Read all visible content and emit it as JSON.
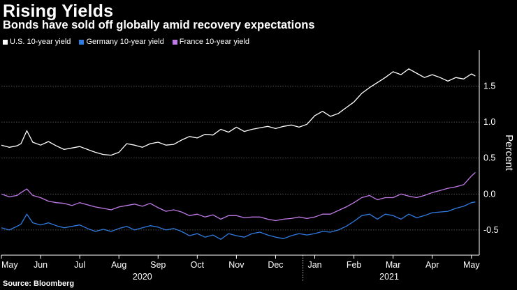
{
  "title": "Rising Yields",
  "subtitle": "Bonds have sold off globally amid recovery expectations",
  "source": "Source: Bloomberg",
  "colors": {
    "background": "#000000",
    "us": "#ffffff",
    "germany": "#2f7be0",
    "france": "#c07ae8",
    "grid": "#666666"
  },
  "chart_data": {
    "type": "line",
    "title": "Rising Yields",
    "subtitle": "Bonds have sold off globally amid recovery expectations",
    "xlabel": "",
    "ylabel": "Percent",
    "ylim": [
      -0.85,
      2.0
    ],
    "yticks": [
      1.5,
      1.0,
      0.5,
      0.0,
      -0.5
    ],
    "ytick_labels": [
      "1.5",
      "1.0",
      "0.5",
      "0.0",
      "-0.5"
    ],
    "xlim": [
      0,
      12.2
    ],
    "month_ticks": [
      {
        "x": 0.0,
        "label": "May"
      },
      {
        "x": 1.0,
        "label": "Jun"
      },
      {
        "x": 2.0,
        "label": "Jul"
      },
      {
        "x": 3.0,
        "label": "Aug"
      },
      {
        "x": 4.0,
        "label": "Sep"
      },
      {
        "x": 5.0,
        "label": "Oct"
      },
      {
        "x": 6.0,
        "label": "Nov"
      },
      {
        "x": 7.0,
        "label": "Dec"
      },
      {
        "x": 8.0,
        "label": "Jan"
      },
      {
        "x": 9.0,
        "label": "Feb"
      },
      {
        "x": 10.0,
        "label": "Mar"
      },
      {
        "x": 11.0,
        "label": "Apr"
      },
      {
        "x": 12.0,
        "label": "May"
      }
    ],
    "year_labels": [
      {
        "x": 3.6,
        "label": "2020"
      },
      {
        "x": 9.9,
        "label": "2021"
      }
    ],
    "year_divider_x": 7.7,
    "legend_position": "top-left",
    "grid": true,
    "series": [
      {
        "name": "U.S. 10-year yield",
        "color": "#ffffff",
        "x": [
          0.0,
          0.2,
          0.4,
          0.5,
          0.65,
          0.8,
          1.0,
          1.2,
          1.4,
          1.6,
          1.8,
          2.0,
          2.2,
          2.4,
          2.6,
          2.8,
          3.0,
          3.2,
          3.4,
          3.6,
          3.8,
          4.0,
          4.2,
          4.4,
          4.6,
          4.8,
          5.0,
          5.2,
          5.4,
          5.6,
          5.8,
          6.0,
          6.2,
          6.4,
          6.6,
          6.8,
          7.0,
          7.2,
          7.4,
          7.6,
          7.8,
          8.0,
          8.2,
          8.4,
          8.6,
          8.8,
          9.0,
          9.2,
          9.4,
          9.6,
          9.8,
          10.0,
          10.2,
          10.4,
          10.6,
          10.8,
          11.0,
          11.2,
          11.4,
          11.6,
          11.8,
          12.0,
          12.1
        ],
        "y": [
          0.68,
          0.65,
          0.67,
          0.7,
          0.88,
          0.72,
          0.68,
          0.73,
          0.67,
          0.62,
          0.64,
          0.66,
          0.62,
          0.58,
          0.55,
          0.54,
          0.58,
          0.7,
          0.68,
          0.65,
          0.7,
          0.72,
          0.68,
          0.69,
          0.75,
          0.8,
          0.78,
          0.83,
          0.82,
          0.9,
          0.86,
          0.93,
          0.87,
          0.9,
          0.92,
          0.94,
          0.91,
          0.94,
          0.96,
          0.93,
          0.97,
          1.09,
          1.15,
          1.08,
          1.12,
          1.2,
          1.28,
          1.4,
          1.48,
          1.55,
          1.62,
          1.7,
          1.66,
          1.74,
          1.68,
          1.62,
          1.66,
          1.62,
          1.57,
          1.62,
          1.6,
          1.67,
          1.64
        ]
      },
      {
        "name": "Germany 10-year yield",
        "color": "#2f7be0",
        "x": [
          0.0,
          0.2,
          0.4,
          0.5,
          0.65,
          0.8,
          1.0,
          1.2,
          1.4,
          1.6,
          1.8,
          2.0,
          2.2,
          2.4,
          2.6,
          2.8,
          3.0,
          3.2,
          3.4,
          3.6,
          3.8,
          4.0,
          4.2,
          4.4,
          4.6,
          4.8,
          5.0,
          5.2,
          5.4,
          5.6,
          5.8,
          6.0,
          6.2,
          6.4,
          6.6,
          6.8,
          7.0,
          7.2,
          7.4,
          7.6,
          7.8,
          8.0,
          8.2,
          8.4,
          8.6,
          8.8,
          9.0,
          9.2,
          9.4,
          9.6,
          9.8,
          10.0,
          10.2,
          10.4,
          10.6,
          10.8,
          11.0,
          11.2,
          11.4,
          11.6,
          11.8,
          12.0,
          12.1
        ],
        "y": [
          -0.47,
          -0.5,
          -0.45,
          -0.42,
          -0.28,
          -0.4,
          -0.43,
          -0.4,
          -0.44,
          -0.47,
          -0.45,
          -0.43,
          -0.48,
          -0.52,
          -0.49,
          -0.52,
          -0.48,
          -0.45,
          -0.5,
          -0.47,
          -0.44,
          -0.46,
          -0.5,
          -0.48,
          -0.52,
          -0.58,
          -0.55,
          -0.6,
          -0.57,
          -0.63,
          -0.55,
          -0.58,
          -0.6,
          -0.55,
          -0.53,
          -0.57,
          -0.6,
          -0.62,
          -0.58,
          -0.55,
          -0.57,
          -0.55,
          -0.52,
          -0.53,
          -0.5,
          -0.45,
          -0.38,
          -0.3,
          -0.28,
          -0.35,
          -0.28,
          -0.3,
          -0.35,
          -0.28,
          -0.33,
          -0.3,
          -0.26,
          -0.25,
          -0.24,
          -0.2,
          -0.17,
          -0.12,
          -0.11
        ]
      },
      {
        "name": "France 10-year yield",
        "color": "#c07ae8",
        "x": [
          0.0,
          0.2,
          0.4,
          0.5,
          0.65,
          0.8,
          1.0,
          1.2,
          1.4,
          1.6,
          1.8,
          2.0,
          2.2,
          2.4,
          2.6,
          2.8,
          3.0,
          3.2,
          3.4,
          3.6,
          3.8,
          4.0,
          4.2,
          4.4,
          4.6,
          4.8,
          5.0,
          5.2,
          5.4,
          5.6,
          5.8,
          6.0,
          6.2,
          6.4,
          6.6,
          6.8,
          7.0,
          7.2,
          7.4,
          7.6,
          7.8,
          8.0,
          8.2,
          8.4,
          8.6,
          8.8,
          9.0,
          9.2,
          9.4,
          9.6,
          9.8,
          10.0,
          10.2,
          10.4,
          10.6,
          10.8,
          11.0,
          11.2,
          11.4,
          11.6,
          11.8,
          12.0,
          12.1
        ],
        "y": [
          0.0,
          -0.04,
          -0.02,
          0.02,
          0.07,
          -0.02,
          -0.05,
          -0.1,
          -0.12,
          -0.13,
          -0.16,
          -0.12,
          -0.15,
          -0.18,
          -0.2,
          -0.22,
          -0.18,
          -0.16,
          -0.14,
          -0.17,
          -0.13,
          -0.19,
          -0.24,
          -0.22,
          -0.25,
          -0.3,
          -0.28,
          -0.32,
          -0.29,
          -0.35,
          -0.3,
          -0.3,
          -0.33,
          -0.32,
          -0.32,
          -0.35,
          -0.37,
          -0.35,
          -0.34,
          -0.32,
          -0.34,
          -0.32,
          -0.28,
          -0.28,
          -0.23,
          -0.18,
          -0.12,
          -0.05,
          -0.02,
          -0.08,
          -0.05,
          -0.05,
          0.0,
          -0.03,
          -0.05,
          -0.02,
          0.02,
          0.05,
          0.08,
          0.1,
          0.13,
          0.25,
          0.3
        ]
      }
    ]
  }
}
